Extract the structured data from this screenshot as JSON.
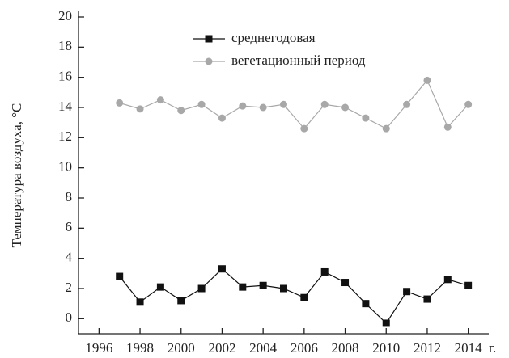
{
  "chart_data": {
    "type": "line",
    "y_label": "Температура воздуха, °C",
    "x_label": "г.",
    "x": [
      1997,
      1998,
      1999,
      2000,
      2001,
      2002,
      2003,
      2004,
      2005,
      2006,
      2007,
      2008,
      2009,
      2010,
      2011,
      2012,
      2013,
      2014
    ],
    "series": [
      {
        "name": "среднегодовая",
        "color": "#111111",
        "marker": "square",
        "values": [
          2.8,
          1.1,
          2.1,
          1.2,
          2.0,
          3.3,
          2.1,
          2.2,
          2.0,
          1.4,
          3.1,
          2.4,
          1.0,
          -0.3,
          1.8,
          1.3,
          2.6,
          2.2
        ]
      },
      {
        "name": "вегетационный период",
        "color": "#a8a8a8",
        "marker": "circle",
        "values": [
          14.3,
          13.9,
          14.5,
          13.8,
          14.2,
          13.3,
          14.1,
          14.0,
          14.2,
          12.6,
          14.2,
          14.0,
          13.3,
          12.6,
          14.2,
          15.8,
          12.7,
          14.2
        ]
      }
    ],
    "xlim": [
      1995,
      2015
    ],
    "xticks": [
      1996,
      1998,
      2000,
      2002,
      2004,
      2006,
      2008,
      2010,
      2012,
      2014
    ],
    "ylim": [
      -1,
      20
    ],
    "yticks": [
      0,
      2,
      4,
      6,
      8,
      10,
      12,
      14,
      16,
      18,
      20
    ],
    "grid": false,
    "legend": "top"
  }
}
